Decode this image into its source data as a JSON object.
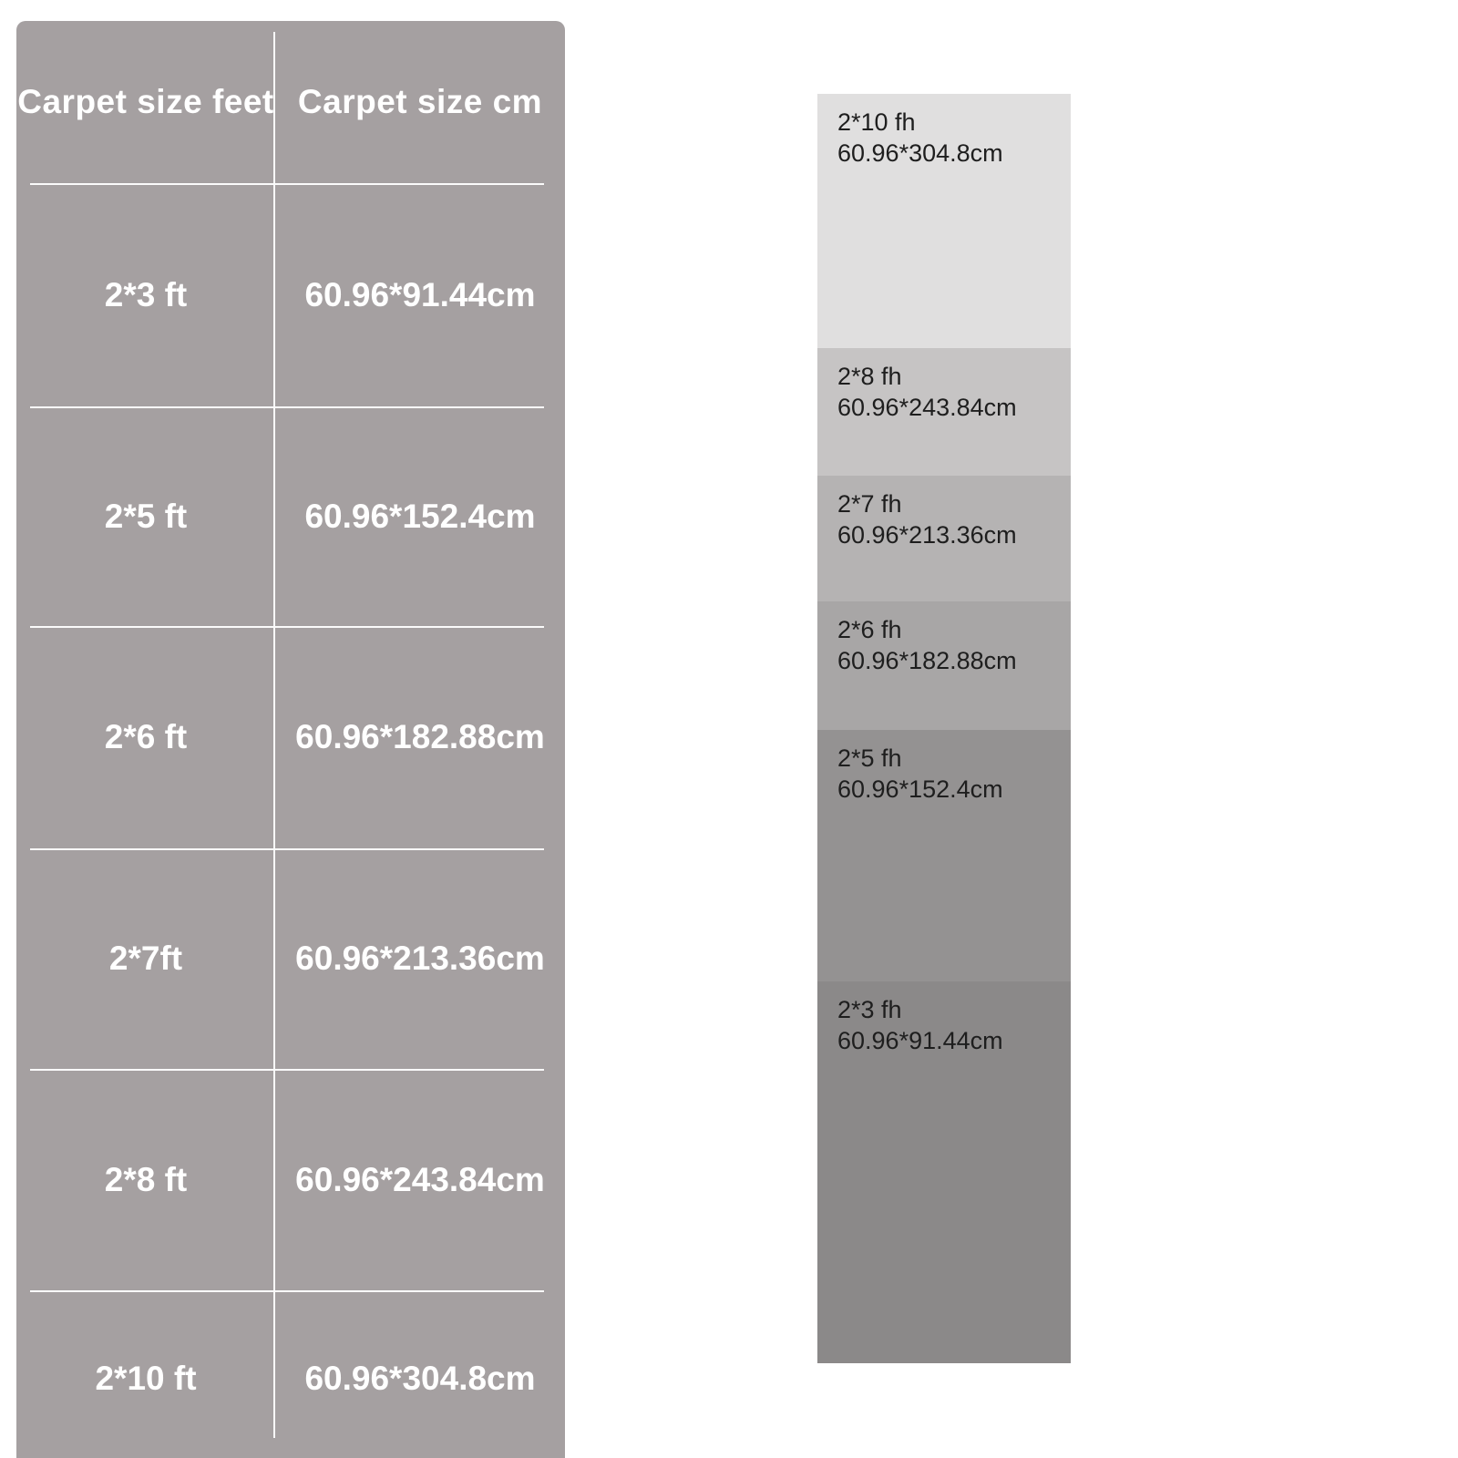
{
  "colors": {
    "background": "#ffffff",
    "panel": "#a5a0a1",
    "divider": "#fbfbfb",
    "table_text": "#ffffff",
    "block_text": "#1e1e1e"
  },
  "chart_data": [
    {
      "type": "table",
      "columns": [
        "Carpet size feet",
        "Carpet size cm"
      ],
      "rows": [
        [
          "2*3 ft",
          "60.96*91.44cm"
        ],
        [
          "2*5 ft",
          "60.96*152.4cm"
        ],
        [
          "2*6 ft",
          "60.96*182.88cm"
        ],
        [
          "2*7ft",
          "60.96*213.36cm"
        ],
        [
          "2*8 ft",
          "60.96*243.84cm"
        ],
        [
          "2*10 ft",
          "60.96*304.8cm"
        ]
      ],
      "grid": "white inset dividers",
      "legend_position": "none"
    },
    {
      "type": "table",
      "columns": [
        "size_ft",
        "size_cm",
        "swatch_color"
      ],
      "rows": [
        [
          "2*10 fh",
          "60.96*304.8cm",
          "#e0dfdf"
        ],
        [
          "2*8 fh",
          "60.96*243.84cm",
          "#c6c4c4"
        ],
        [
          "2*7 fh",
          "60.96*213.36cm",
          "#b5b3b3"
        ],
        [
          "2*6 fh",
          "60.96*182.88cm",
          "#a8a6a6"
        ],
        [
          "2*5 fh",
          "60.96*152.4cm",
          "#949292"
        ],
        [
          "2*3 fh",
          "60.96*91.44cm",
          "#8b8989"
        ]
      ],
      "legend_position": "none"
    }
  ]
}
